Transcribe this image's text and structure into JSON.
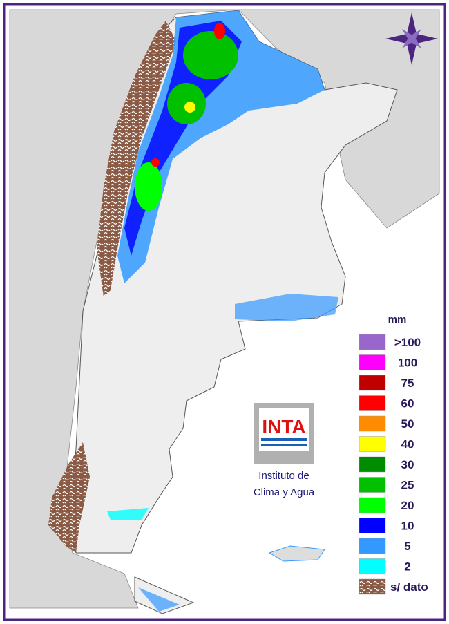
{
  "legend": {
    "unit": "mm",
    "items": [
      {
        "label": ">100",
        "color": "#9966cc"
      },
      {
        "label": "100",
        "color": "#ff00ff"
      },
      {
        "label": "75",
        "color": "#c00000"
      },
      {
        "label": "60",
        "color": "#ff0000"
      },
      {
        "label": "50",
        "color": "#ff8c00"
      },
      {
        "label": "40",
        "color": "#ffff00"
      },
      {
        "label": "30",
        "color": "#008c00"
      },
      {
        "label": "25",
        "color": "#00c000"
      },
      {
        "label": "20",
        "color": "#00ff00"
      },
      {
        "label": "10",
        "color": "#0000ff"
      },
      {
        "label": "5",
        "color": "#3399ff"
      },
      {
        "label": "2",
        "color": "#00ffff"
      },
      {
        "label": "s/ dato",
        "color": "#8b5a44"
      }
    ]
  },
  "logo": {
    "text": "INTA",
    "caption_line1": "Instituto de",
    "caption_line2": "Clima y Agua"
  }
}
